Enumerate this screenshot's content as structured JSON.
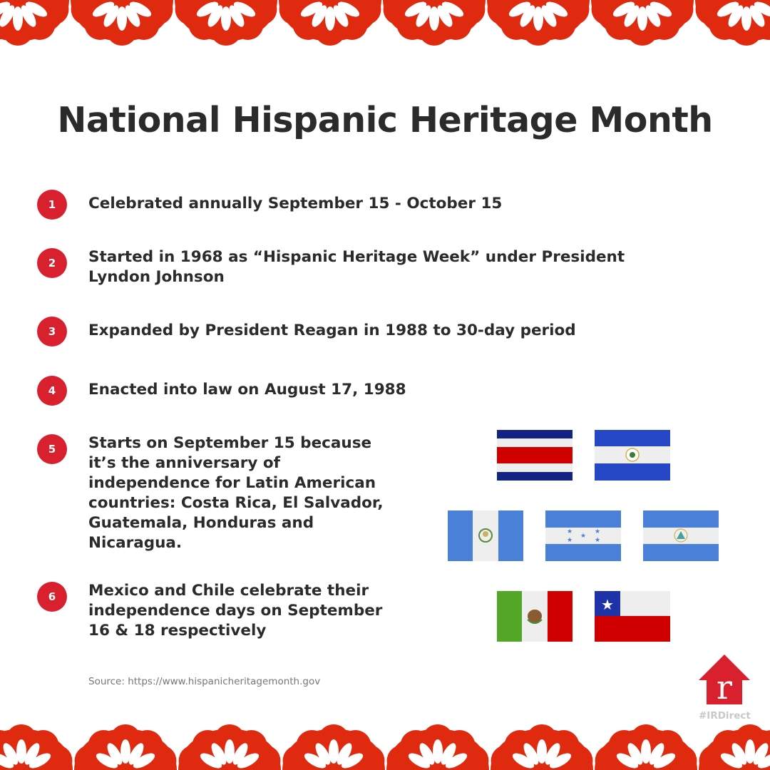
{
  "title": "National Hispanic Heritage Month",
  "items": [
    {
      "number": "1",
      "text": "Celebrated annually September 15 - October 15"
    },
    {
      "number": "2",
      "text": "Started in 1968 as “Hispanic Heritage Week” under President Lyndon Johnson"
    },
    {
      "number": "3",
      "text": "Expanded by President Reagan in 1988 to 30-day period"
    },
    {
      "number": "4",
      "text": "Enacted into law on August 17, 1988"
    },
    {
      "number": "5",
      "text": "Starts on September 15 because it’s the anniversary of independence for Latin American countries: Costa Rica, El Salvador, Guatemala, Honduras and Nicaragua."
    },
    {
      "number": "6",
      "text": "Mexico and Chile celebrate their independence days on September 16 & 18 respectively"
    }
  ],
  "flags": [
    "costa-rica",
    "el-salvador",
    "guatemala",
    "honduras",
    "nicaragua",
    "mexico",
    "chile"
  ],
  "source": "Source: https://www.hispanicheritagemonth.gov",
  "logo": {
    "letter": "r",
    "hashtag": "#IRDirect"
  },
  "colors": {
    "accent": "#d8202e",
    "border": "#e02a10",
    "text": "#2b2b2b"
  }
}
